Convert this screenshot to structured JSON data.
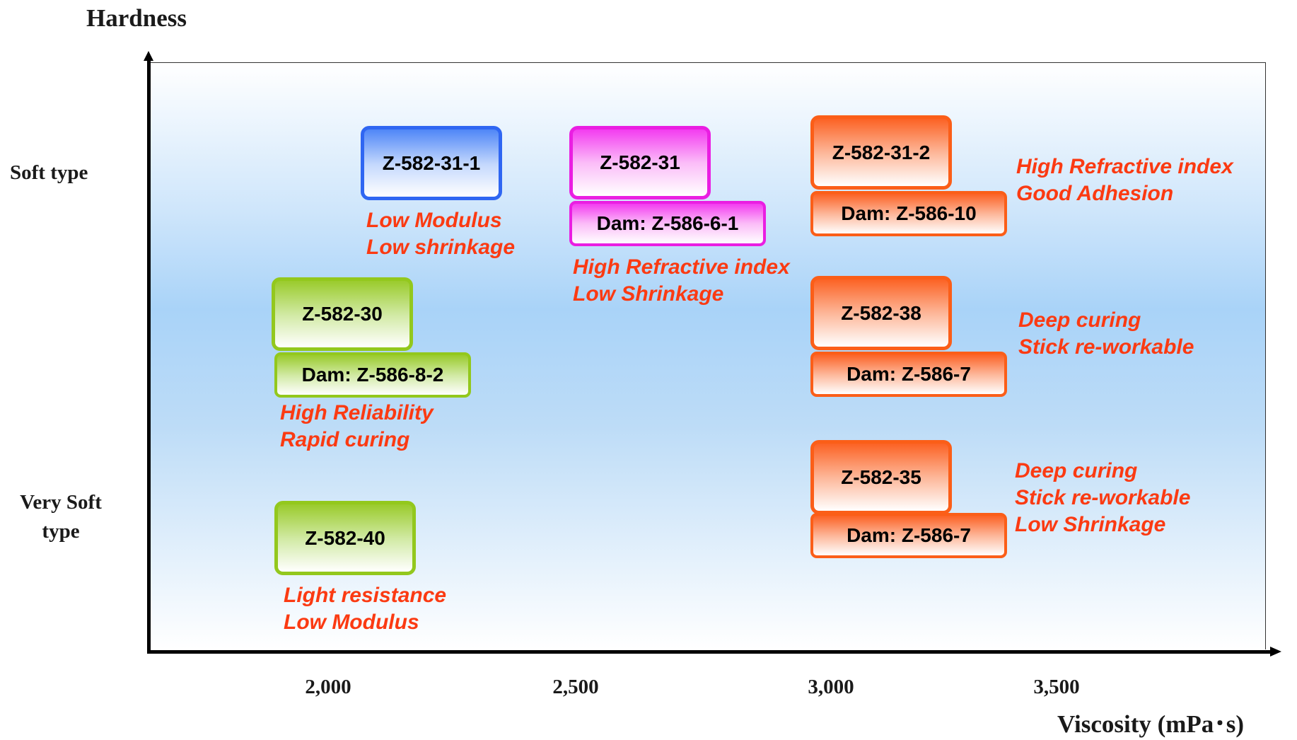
{
  "axes": {
    "y_title": "Hardness",
    "x_title": "Viscosity (mPa･s)",
    "y_labels": {
      "soft": "Soft type",
      "very_soft_line1": "Very Soft",
      "very_soft_line2": "type"
    },
    "x_ticks": [
      "2,000",
      "2,500",
      "3,000",
      "3,500"
    ]
  },
  "colors": {
    "blue": "#4f86f7",
    "magenta": "#f33cf0",
    "orange": "#fc6224",
    "green": "#9acb2c",
    "description_text": "#fb3a12"
  },
  "products": {
    "z582_31_1": {
      "name": "Z-582-31-1",
      "desc": [
        "Low Modulus",
        "Low shrinkage"
      ]
    },
    "z582_31": {
      "name": "Z-582-31",
      "dam": "Dam: Z-586-6-1",
      "desc": [
        "High Refractive index",
        "Low Shrinkage"
      ]
    },
    "z582_31_2": {
      "name": "Z-582-31-2",
      "dam": "Dam: Z-586-10",
      "desc": [
        "High Refractive index",
        "Good Adhesion"
      ]
    },
    "z582_30": {
      "name": "Z-582-30",
      "dam": "Dam: Z-586-8-2",
      "desc": [
        "High Reliability",
        "Rapid curing"
      ]
    },
    "z582_38": {
      "name": "Z-582-38",
      "dam": "Dam: Z-586-7",
      "desc": [
        "Deep curing",
        "Stick re-workable"
      ]
    },
    "z582_35": {
      "name": "Z-582-35",
      "dam": "Dam: Z-586-7",
      "desc": [
        "Deep curing",
        "Stick re-workable",
        "Low Shrinkage"
      ]
    },
    "z582_40": {
      "name": "Z-582-40",
      "desc": [
        "Light resistance",
        "Low Modulus"
      ]
    }
  }
}
